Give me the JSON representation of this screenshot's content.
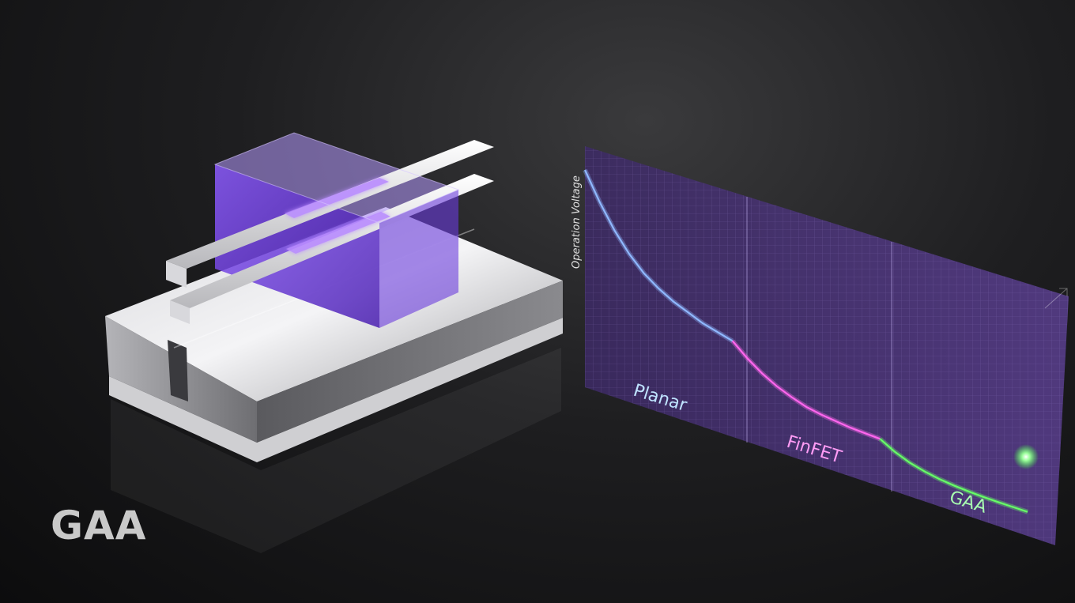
{
  "caption": "GAA",
  "chart_data": {
    "type": "line",
    "ylabel": "Operation Voltage",
    "xlabel": "",
    "categories": [
      "Planar",
      "FinFET",
      "GAA"
    ],
    "grid": true,
    "series": [
      {
        "name": "Planar",
        "color": "#8fb8ff",
        "points": [
          [
            0,
            1.0
          ],
          [
            0.1,
            0.87
          ],
          [
            0.2,
            0.76
          ],
          [
            0.3,
            0.67
          ],
          [
            0.4,
            0.6
          ],
          [
            0.5,
            0.55
          ],
          [
            0.6,
            0.51
          ],
          [
            0.7,
            0.48
          ],
          [
            0.8,
            0.45
          ],
          [
            0.9,
            0.43
          ],
          [
            1.0,
            0.41
          ]
        ]
      },
      {
        "name": "FinFET",
        "color": "#ff66ee",
        "points": [
          [
            1.0,
            0.41
          ],
          [
            1.1,
            0.35
          ],
          [
            1.2,
            0.3
          ],
          [
            1.3,
            0.26
          ],
          [
            1.4,
            0.23
          ],
          [
            1.5,
            0.205
          ],
          [
            1.6,
            0.19
          ],
          [
            1.7,
            0.18
          ],
          [
            1.8,
            0.17
          ],
          [
            1.9,
            0.165
          ],
          [
            2.0,
            0.16
          ]
        ]
      },
      {
        "name": "GAA",
        "color": "#66ff66",
        "points": [
          [
            2.0,
            0.16
          ],
          [
            2.1,
            0.12
          ],
          [
            2.2,
            0.09
          ],
          [
            2.3,
            0.07
          ],
          [
            2.4,
            0.055
          ],
          [
            2.5,
            0.045
          ],
          [
            2.6,
            0.038
          ],
          [
            2.7,
            0.033
          ],
          [
            2.8,
            0.03
          ],
          [
            2.9,
            0.028
          ],
          [
            3.0,
            0.026
          ]
        ]
      }
    ],
    "label_colors": [
      "#bfe3ff",
      "#ff9cf5",
      "#a8ffb0"
    ]
  }
}
